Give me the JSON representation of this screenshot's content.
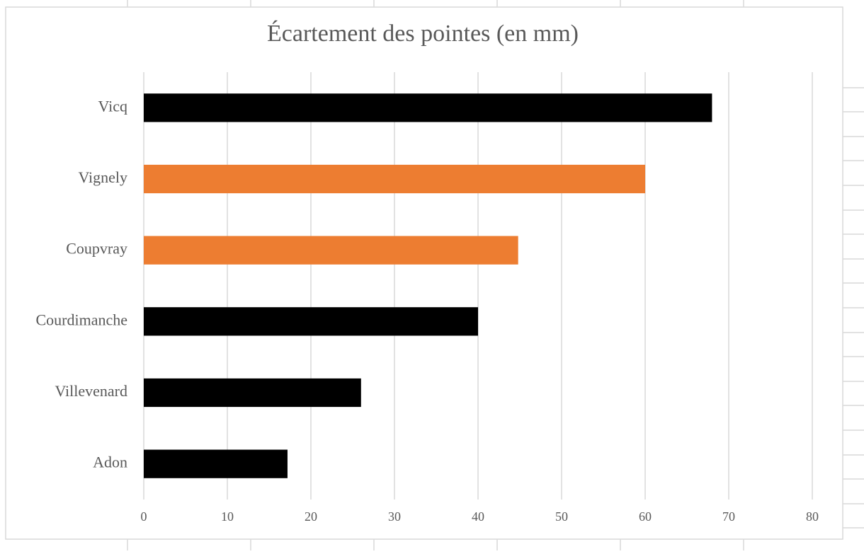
{
  "chart_data": {
    "type": "bar",
    "orientation": "horizontal",
    "title": "Écartement des pointes (en mm)",
    "categories": [
      "Vicq",
      "Vignely",
      "Coupvray",
      "Courdimanche",
      "Villevenard",
      "Adon"
    ],
    "values": [
      68,
      60,
      44.8,
      40,
      26,
      17.2
    ],
    "colors": [
      "#000000",
      "#ed7d31",
      "#ed7d31",
      "#000000",
      "#000000",
      "#000000"
    ],
    "xlim": [
      0,
      80
    ],
    "xticks": [
      0,
      10,
      20,
      30,
      40,
      50,
      60,
      70,
      80
    ],
    "grid": true
  }
}
